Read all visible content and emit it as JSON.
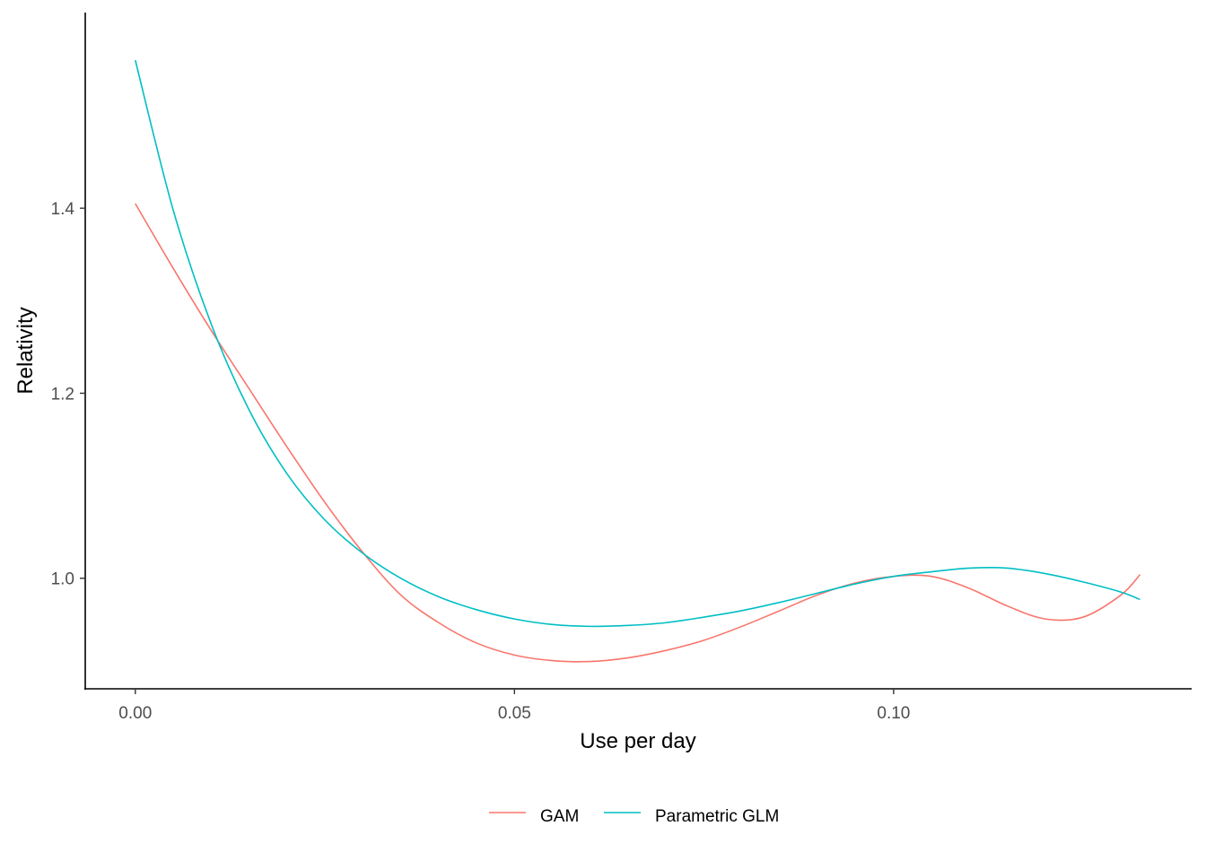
{
  "chart_data": {
    "type": "line",
    "title": "",
    "xlabel": "Use per day",
    "ylabel": "Relativity",
    "xlim": [
      -0.0066,
      0.1393
    ],
    "ylim": [
      0.8805,
      1.6115
    ],
    "x_ticks": [
      {
        "value": 0.0,
        "label": "0.00"
      },
      {
        "value": 0.05,
        "label": "0.05"
      },
      {
        "value": 0.1,
        "label": "0.10"
      }
    ],
    "y_ticks": [
      {
        "value": 1.0,
        "label": "1.0"
      },
      {
        "value": 1.2,
        "label": "1.2"
      },
      {
        "value": 1.4,
        "label": "1.4"
      }
    ],
    "grid": false,
    "legend": {
      "position": "bottom"
    },
    "series": [
      {
        "name": "GAM",
        "color": "#F8766D",
        "x": [
          0.0,
          0.005,
          0.01,
          0.015,
          0.02,
          0.025,
          0.03,
          0.035,
          0.04,
          0.045,
          0.05,
          0.055,
          0.06,
          0.065,
          0.07,
          0.075,
          0.08,
          0.085,
          0.09,
          0.095,
          0.1,
          0.105,
          0.11,
          0.115,
          0.12,
          0.125,
          0.13,
          0.1325
        ],
        "y": [
          1.405,
          1.335,
          1.268,
          1.205,
          1.142,
          1.082,
          1.028,
          0.982,
          0.952,
          0.93,
          0.917,
          0.911,
          0.91,
          0.914,
          0.922,
          0.933,
          0.948,
          0.965,
          0.982,
          0.995,
          1.002,
          1.002,
          0.989,
          0.97,
          0.956,
          0.958,
          0.982,
          1.004
        ]
      },
      {
        "name": "Parametric GLM",
        "color": "#00BFC4",
        "x": [
          0.0,
          0.005,
          0.01,
          0.015,
          0.02,
          0.025,
          0.03,
          0.035,
          0.04,
          0.045,
          0.05,
          0.055,
          0.06,
          0.065,
          0.07,
          0.075,
          0.08,
          0.085,
          0.09,
          0.095,
          0.1,
          0.105,
          0.11,
          0.115,
          0.12,
          0.125,
          0.13,
          0.1325
        ],
        "y": [
          1.56,
          1.398,
          1.275,
          1.182,
          1.113,
          1.063,
          1.027,
          1.0,
          0.98,
          0.966,
          0.956,
          0.95,
          0.948,
          0.949,
          0.952,
          0.958,
          0.965,
          0.974,
          0.984,
          0.994,
          1.002,
          1.007,
          1.011,
          1.011,
          1.005,
          0.996,
          0.985,
          0.977
        ]
      }
    ]
  }
}
